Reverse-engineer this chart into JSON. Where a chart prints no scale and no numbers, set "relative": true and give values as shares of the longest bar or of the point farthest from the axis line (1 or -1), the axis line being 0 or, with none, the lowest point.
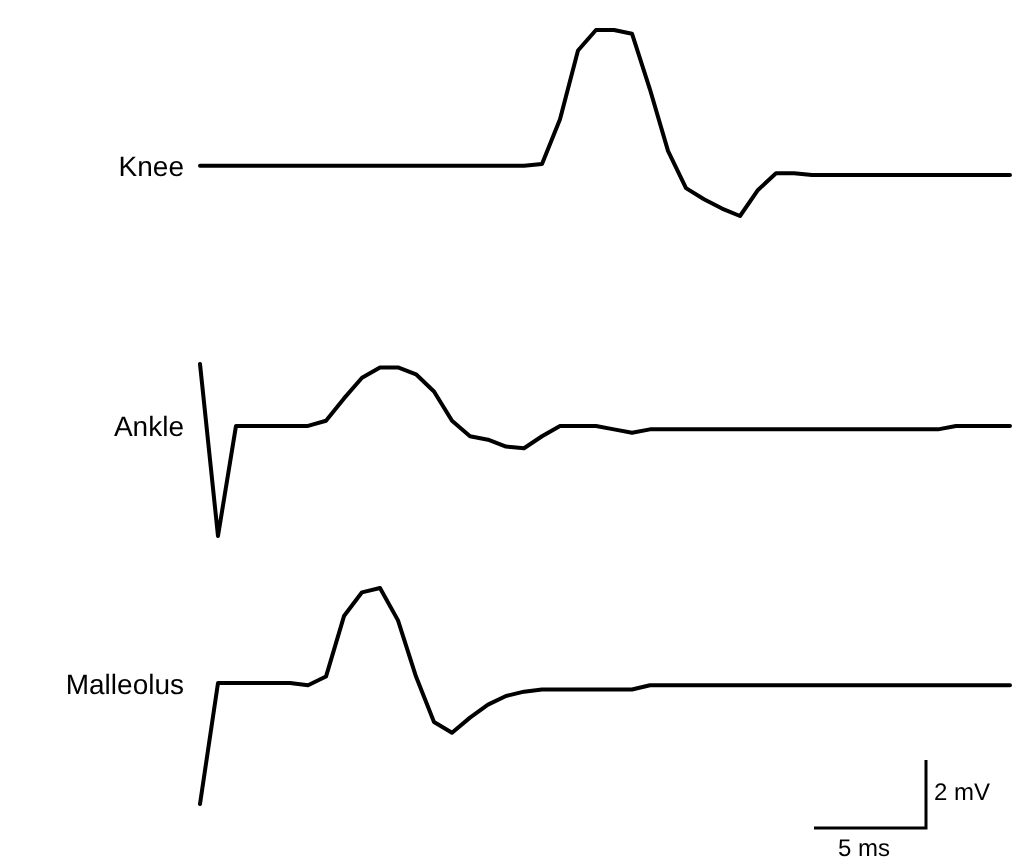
{
  "chart_data": [
    {
      "type": "line",
      "relative": true,
      "marker": "none",
      "line_style": "solid",
      "categories": [
        null,
        null,
        null,
        null,
        null,
        null,
        null,
        null,
        null,
        null,
        null,
        null,
        null,
        null,
        null,
        null,
        null,
        null,
        null,
        null,
        null,
        null,
        null,
        null,
        null,
        null,
        null,
        null,
        null,
        null,
        null,
        null,
        null,
        null,
        null,
        null,
        null,
        null,
        null,
        null,
        null,
        null,
        null,
        null,
        null,
        null
      ],
      "series": [
        {
          "name": "Knee",
          "color": "#000000",
          "values": [
            0.27,
            0.27,
            0.27,
            0.27,
            0.27,
            0.27,
            0.27,
            0.27,
            0.27,
            0.27,
            0.27,
            0.27,
            0.27,
            0.27,
            0.27,
            0.27,
            0.27,
            0.27,
            0.27,
            0.28,
            0.52,
            0.89,
            1,
            1,
            0.98,
            0.68,
            0.35,
            0.15,
            0.09,
            0.04,
            0,
            0.14,
            0.23,
            0.23,
            0.22,
            0.22,
            0.22,
            0.22,
            0.22,
            0.22,
            0.22,
            0.22,
            0.22,
            0.22,
            0.22,
            0.22
          ]
        }
      ]
    },
    {
      "type": "line",
      "relative": true,
      "marker": "none",
      "line_style": "solid",
      "categories": [
        null,
        null,
        null,
        null,
        null,
        null,
        null,
        null,
        null,
        null,
        null,
        null,
        null,
        null,
        null,
        null,
        null,
        null,
        null,
        null,
        null,
        null,
        null,
        null,
        null,
        null,
        null,
        null,
        null,
        null,
        null,
        null,
        null,
        null,
        null,
        null,
        null,
        null,
        null,
        null,
        null,
        null,
        null,
        null,
        null,
        null
      ],
      "series": [
        {
          "name": "Ankle",
          "color": "#000000",
          "values": [
            1,
            0,
            0.64,
            0.64,
            0.64,
            0.64,
            0.64,
            0.67,
            0.8,
            0.92,
            0.98,
            0.98,
            0.94,
            0.84,
            0.67,
            0.58,
            0.56,
            0.52,
            0.51,
            0.58,
            0.64,
            0.64,
            0.64,
            0.62,
            0.6,
            0.62,
            0.62,
            0.62,
            0.62,
            0.62,
            0.62,
            0.62,
            0.62,
            0.62,
            0.62,
            0.62,
            0.62,
            0.62,
            0.62,
            0.62,
            0.62,
            0.62,
            0.64,
            0.64,
            0.64,
            0.64
          ]
        }
      ]
    },
    {
      "type": "line",
      "relative": true,
      "marker": "none",
      "line_style": "solid",
      "annotations": [
        "2 mV",
        "5 ms"
      ],
      "categories": [
        null,
        null,
        null,
        null,
        null,
        null,
        null,
        null,
        null,
        null,
        null,
        null,
        null,
        null,
        null,
        null,
        null,
        null,
        null,
        null,
        null,
        null,
        null,
        null,
        null,
        null,
        null,
        null,
        null,
        null,
        null,
        null,
        null,
        null,
        null,
        null,
        null,
        null,
        null,
        null,
        null,
        null,
        null,
        null,
        null,
        null
      ],
      "series": [
        {
          "name": "Malleolus",
          "color": "#000000",
          "values": [
            0,
            0.56,
            0.56,
            0.56,
            0.56,
            0.56,
            0.55,
            0.59,
            0.87,
            0.98,
            1,
            0.85,
            0.59,
            0.38,
            0.33,
            0.4,
            0.46,
            0.5,
            0.52,
            0.53,
            0.53,
            0.53,
            0.53,
            0.53,
            0.53,
            0.55,
            0.55,
            0.55,
            0.55,
            0.55,
            0.55,
            0.55,
            0.55,
            0.55,
            0.55,
            0.55,
            0.55,
            0.55,
            0.55,
            0.55,
            0.55,
            0.55,
            0.55,
            0.55,
            0.55,
            0.55
          ]
        }
      ]
    }
  ]
}
